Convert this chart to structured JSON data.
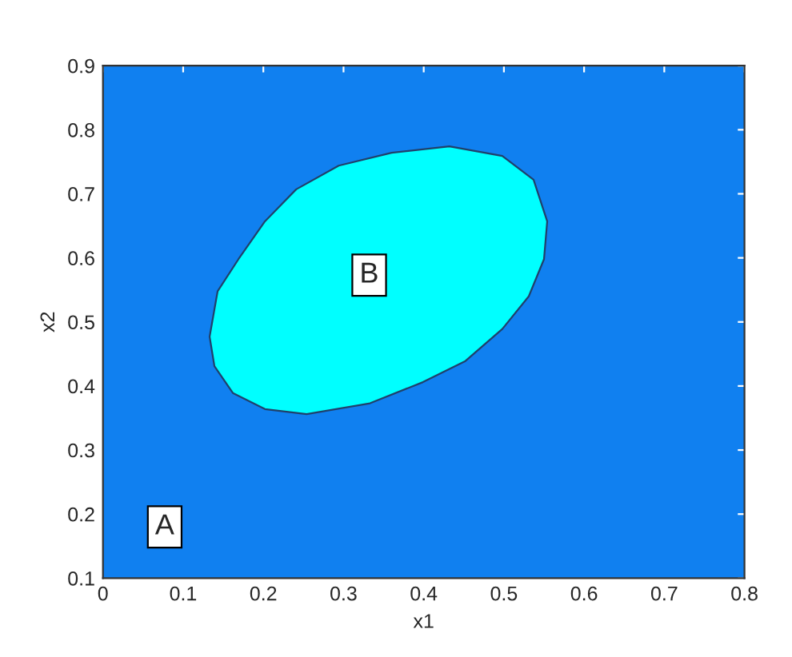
{
  "chart_data": {
    "type": "area",
    "xlabel": "x1",
    "ylabel": "x2",
    "xlim": [
      0,
      0.8
    ],
    "ylim": [
      0.1,
      0.9
    ],
    "xticks": [
      0,
      0.1,
      0.2,
      0.3,
      0.4,
      0.5,
      0.6,
      0.7,
      0.8
    ],
    "yticks": [
      0.1,
      0.2,
      0.3,
      0.4,
      0.5,
      0.6,
      0.7,
      0.8,
      0.9
    ],
    "grid": false,
    "bands": [
      {
        "axis": "x",
        "from": 0,
        "to": 0.8,
        "color": "#1080f0"
      }
    ],
    "series": [
      {
        "color": "#00ffff",
        "x": [
          0.133,
          0.143,
          0.169,
          0.202,
          0.241,
          0.294,
          0.36,
          0.432,
          0.498,
          0.537,
          0.554,
          0.55,
          0.531,
          0.498,
          0.452,
          0.399,
          0.333,
          0.254,
          0.202,
          0.162,
          0.139,
          0.133
        ],
        "values": [
          0.477,
          0.548,
          0.598,
          0.657,
          0.707,
          0.744,
          0.764,
          0.774,
          0.759,
          0.722,
          0.657,
          0.598,
          0.54,
          0.489,
          0.439,
          0.406,
          0.373,
          0.356,
          0.364,
          0.389,
          0.431,
          0.477
        ]
      }
    ],
    "annotations": [
      {
        "text": "A",
        "x": 0.077,
        "y": 0.18
      },
      {
        "text": "B",
        "x": 0.332,
        "y": 0.573
      }
    ]
  }
}
